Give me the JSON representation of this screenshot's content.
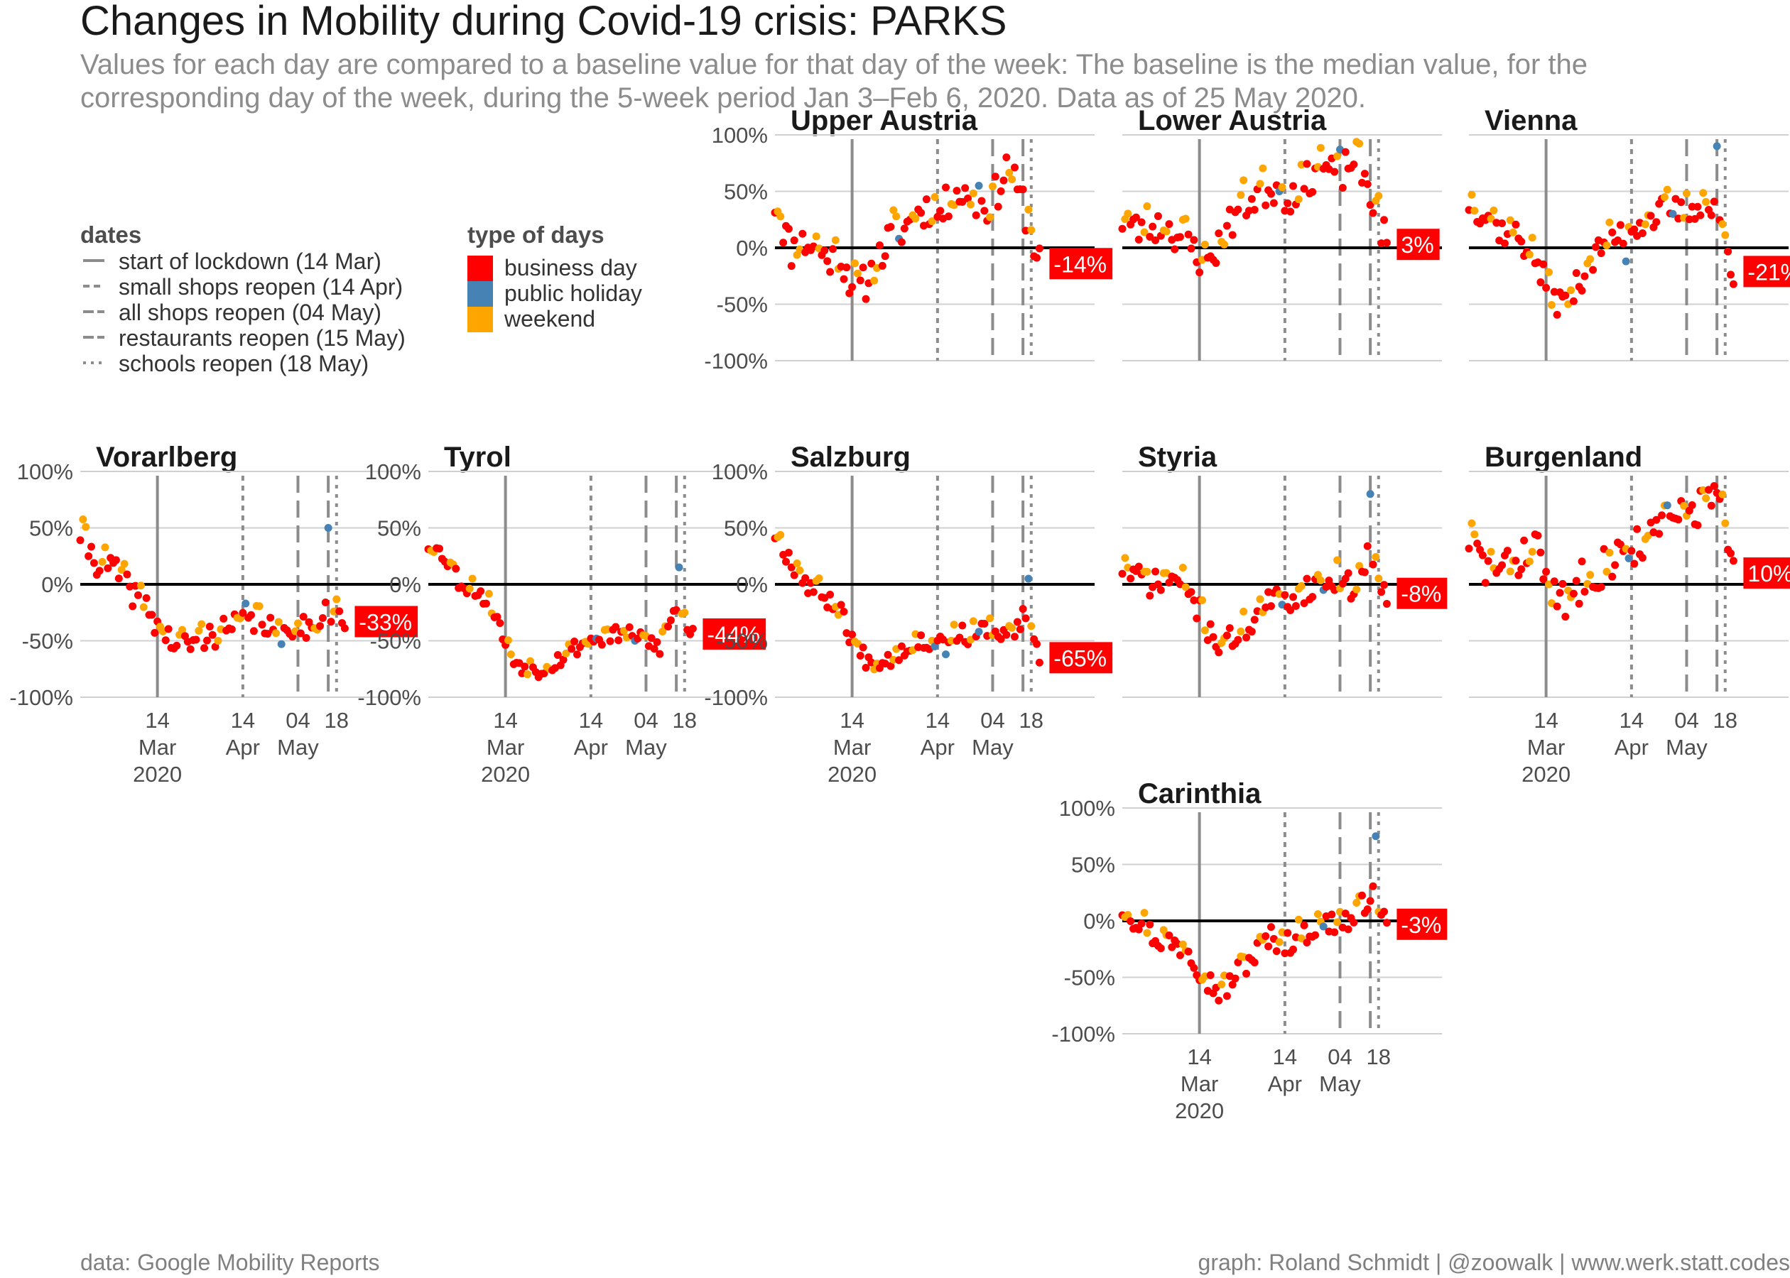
{
  "title": "Changes in Mobility during Covid-19 crisis: PARKS",
  "subtitle_lines": [
    "Values for each day are compared to a baseline value for that day of the week: The baseline is the median value, for the",
    "corresponding day of the week, during the 5-week period Jan 3–Feb 6, 2020. Data as of 25 May 2020."
  ],
  "caption_left": "data: Google Mobility Reports",
  "caption_right": "graph: Roland Schmidt | @zoowalk | www.werk.statt.codes",
  "colors": {
    "business_day": "#ff0000",
    "public_holiday": "#4682b4",
    "weekend": "#ffa500",
    "event_line": "#8c8c8c",
    "grid": "#d0d0d0",
    "zero_line": "#000000",
    "label_bg": "#ff0000"
  },
  "legend": {
    "dates_title": "dates",
    "dates_items": [
      {
        "label": "start of lockdown (14 Mar)",
        "dash": "solid"
      },
      {
        "label": "small shops reopen (14 Apr)",
        "dash": "dashed"
      },
      {
        "label": "all shops reopen (04 May)",
        "dash": "longdash"
      },
      {
        "label": "restaurants reopen (15 May)",
        "dash": "longdash"
      },
      {
        "label": "schools reopen (18 May)",
        "dash": "dotted"
      }
    ],
    "types_title": "type of days",
    "types_items": [
      {
        "label": "business day",
        "key": "business_day"
      },
      {
        "label": "public holiday",
        "key": "public_holiday"
      },
      {
        "label": "weekend",
        "key": "weekend"
      }
    ]
  },
  "chart_data": {
    "type": "scatter",
    "facet_type": "small multiples",
    "x_domain": [
      "2020-02-15",
      "2020-06-10"
    ],
    "y_range": [
      -100,
      100
    ],
    "y_ticks": [
      -100,
      -50,
      0,
      50,
      100
    ],
    "y_tick_labels": [
      "-100%",
      "-50%",
      "0%",
      "50%",
      "100%"
    ],
    "x_tick_labels": [
      {
        "date": "2020-03-14",
        "lines": [
          "14",
          "Mar",
          "2020"
        ]
      },
      {
        "date": "2020-04-14",
        "lines": [
          "14",
          "Apr"
        ]
      },
      {
        "date": "2020-05-04",
        "lines": [
          "04",
          "May"
        ]
      },
      {
        "date": "2020-05-18",
        "lines": [
          "18"
        ]
      }
    ],
    "events": [
      {
        "date": "2020-03-14",
        "dash": "solid"
      },
      {
        "date": "2020-04-14",
        "dash": "dotted-short"
      },
      {
        "date": "2020-05-04",
        "dash": "longdash"
      },
      {
        "date": "2020-05-15",
        "dash": "longdash"
      },
      {
        "date": "2020-05-18",
        "dash": "dotted"
      }
    ],
    "panels": [
      {
        "name": "Upper Austria",
        "last_label": "-14%",
        "anchors": [
          [
            0,
            40
          ],
          [
            6,
            -2
          ],
          [
            12,
            5
          ],
          [
            18,
            -8
          ],
          [
            24,
            -10
          ],
          [
            30,
            -40
          ],
          [
            36,
            -20
          ],
          [
            42,
            10
          ],
          [
            48,
            20
          ],
          [
            54,
            35
          ],
          [
            60,
            30
          ],
          [
            66,
            50
          ],
          [
            72,
            40
          ],
          [
            78,
            35
          ],
          [
            84,
            70
          ],
          [
            90,
            40
          ],
          [
            96,
            -14
          ]
        ],
        "amp": 17,
        "seed": 11,
        "holidays": [
          [
            45,
            8
          ],
          [
            74,
            55
          ]
        ]
      },
      {
        "name": "Lower Austria",
        "last_label": "3%",
        "anchors": [
          [
            0,
            25
          ],
          [
            6,
            15
          ],
          [
            12,
            20
          ],
          [
            18,
            15
          ],
          [
            24,
            5
          ],
          [
            30,
            -15
          ],
          [
            36,
            5
          ],
          [
            42,
            35
          ],
          [
            48,
            45
          ],
          [
            54,
            55
          ],
          [
            60,
            45
          ],
          [
            66,
            55
          ],
          [
            72,
            75
          ],
          [
            78,
            60
          ],
          [
            84,
            80
          ],
          [
            90,
            50
          ],
          [
            96,
            3
          ]
        ],
        "amp": 16,
        "seed": 23,
        "holidays": [
          [
            57,
            50
          ],
          [
            79,
            87
          ]
        ]
      },
      {
        "name": "Vienna",
        "last_label": "-21%",
        "anchors": [
          [
            0,
            40
          ],
          [
            6,
            30
          ],
          [
            12,
            15
          ],
          [
            18,
            10
          ],
          [
            24,
            -10
          ],
          [
            30,
            -45
          ],
          [
            36,
            -50
          ],
          [
            42,
            -20
          ],
          [
            48,
            0
          ],
          [
            54,
            10
          ],
          [
            60,
            20
          ],
          [
            66,
            25
          ],
          [
            72,
            35
          ],
          [
            78,
            30
          ],
          [
            84,
            40
          ],
          [
            90,
            30
          ],
          [
            96,
            -21
          ]
        ],
        "amp": 13,
        "seed": 37,
        "holidays": [
          [
            57,
            -12
          ],
          [
            74,
            30
          ],
          [
            90,
            90
          ]
        ]
      },
      {
        "name": "Vorarlberg",
        "last_label": "-33%",
        "anchors": [
          [
            0,
            45
          ],
          [
            6,
            20
          ],
          [
            12,
            15
          ],
          [
            18,
            -5
          ],
          [
            24,
            -20
          ],
          [
            30,
            -45
          ],
          [
            36,
            -55
          ],
          [
            42,
            -50
          ],
          [
            48,
            -45
          ],
          [
            54,
            -40
          ],
          [
            60,
            -35
          ],
          [
            66,
            -30
          ],
          [
            72,
            -50
          ],
          [
            78,
            -35
          ],
          [
            84,
            -40
          ],
          [
            90,
            -20
          ],
          [
            96,
            -33
          ]
        ],
        "amp": 12,
        "seed": 41,
        "holidays": [
          [
            60,
            -17
          ],
          [
            73,
            -53
          ],
          [
            90,
            50
          ]
        ]
      },
      {
        "name": "Tyrol",
        "last_label": "-44%",
        "anchors": [
          [
            0,
            35
          ],
          [
            6,
            25
          ],
          [
            12,
            0
          ],
          [
            18,
            -5
          ],
          [
            24,
            -25
          ],
          [
            30,
            -65
          ],
          [
            36,
            -75
          ],
          [
            42,
            -75
          ],
          [
            48,
            -65
          ],
          [
            54,
            -55
          ],
          [
            60,
            -50
          ],
          [
            66,
            -45
          ],
          [
            72,
            -45
          ],
          [
            78,
            -50
          ],
          [
            84,
            -55
          ],
          [
            90,
            -20
          ],
          [
            96,
            -44
          ]
        ],
        "amp": 8,
        "seed": 53,
        "holidays": [
          [
            61,
            -48
          ],
          [
            75,
            -50
          ],
          [
            91,
            15
          ]
        ]
      },
      {
        "name": "Salzburg",
        "last_label": "-65%",
        "anchors": [
          [
            0,
            45
          ],
          [
            6,
            20
          ],
          [
            12,
            0
          ],
          [
            18,
            -10
          ],
          [
            24,
            -25
          ],
          [
            30,
            -60
          ],
          [
            36,
            -70
          ],
          [
            42,
            -65
          ],
          [
            48,
            -55
          ],
          [
            54,
            -50
          ],
          [
            60,
            -50
          ],
          [
            66,
            -45
          ],
          [
            72,
            -45
          ],
          [
            78,
            -40
          ],
          [
            84,
            -50
          ],
          [
            90,
            -30
          ],
          [
            96,
            -65
          ]
        ],
        "amp": 9,
        "seed": 67,
        "holidays": [
          [
            58,
            -55
          ],
          [
            62,
            -62
          ],
          [
            74,
            -42
          ],
          [
            92,
            5
          ]
        ]
      },
      {
        "name": "Styria",
        "last_label": "-8%",
        "anchors": [
          [
            0,
            15
          ],
          [
            6,
            5
          ],
          [
            12,
            0
          ],
          [
            18,
            5
          ],
          [
            24,
            -5
          ],
          [
            30,
            -35
          ],
          [
            36,
            -55
          ],
          [
            42,
            -45
          ],
          [
            48,
            -30
          ],
          [
            54,
            -15
          ],
          [
            60,
            -15
          ],
          [
            66,
            -5
          ],
          [
            72,
            0
          ],
          [
            78,
            5
          ],
          [
            84,
            -5
          ],
          [
            90,
            30
          ],
          [
            96,
            -8
          ]
        ],
        "amp": 12,
        "seed": 71,
        "holidays": [
          [
            58,
            -18
          ],
          [
            73,
            -5
          ],
          [
            90,
            80
          ]
        ]
      },
      {
        "name": "Burgenland",
        "last_label": "10%",
        "anchors": [
          [
            0,
            40
          ],
          [
            6,
            15
          ],
          [
            12,
            10
          ],
          [
            18,
            20
          ],
          [
            24,
            35
          ],
          [
            30,
            -10
          ],
          [
            36,
            -20
          ],
          [
            42,
            10
          ],
          [
            48,
            15
          ],
          [
            54,
            25
          ],
          [
            60,
            35
          ],
          [
            66,
            40
          ],
          [
            72,
            55
          ],
          [
            78,
            60
          ],
          [
            84,
            70
          ],
          [
            90,
            80
          ],
          [
            96,
            10
          ]
        ],
        "amp": 18,
        "seed": 83,
        "holidays": [
          [
            58,
            23
          ],
          [
            72,
            70
          ]
        ]
      },
      {
        "name": "Carinthia",
        "last_label": "-3%",
        "anchors": [
          [
            0,
            10
          ],
          [
            6,
            0
          ],
          [
            12,
            -15
          ],
          [
            18,
            -20
          ],
          [
            24,
            -25
          ],
          [
            30,
            -50
          ],
          [
            36,
            -65
          ],
          [
            42,
            -45
          ],
          [
            48,
            -30
          ],
          [
            54,
            -15
          ],
          [
            60,
            -20
          ],
          [
            66,
            -10
          ],
          [
            72,
            -5
          ],
          [
            78,
            0
          ],
          [
            84,
            0
          ],
          [
            90,
            25
          ],
          [
            96,
            -3
          ]
        ],
        "amp": 11,
        "seed": 97,
        "holidays": [
          [
            73,
            -5
          ],
          [
            92,
            75
          ]
        ]
      }
    ]
  }
}
